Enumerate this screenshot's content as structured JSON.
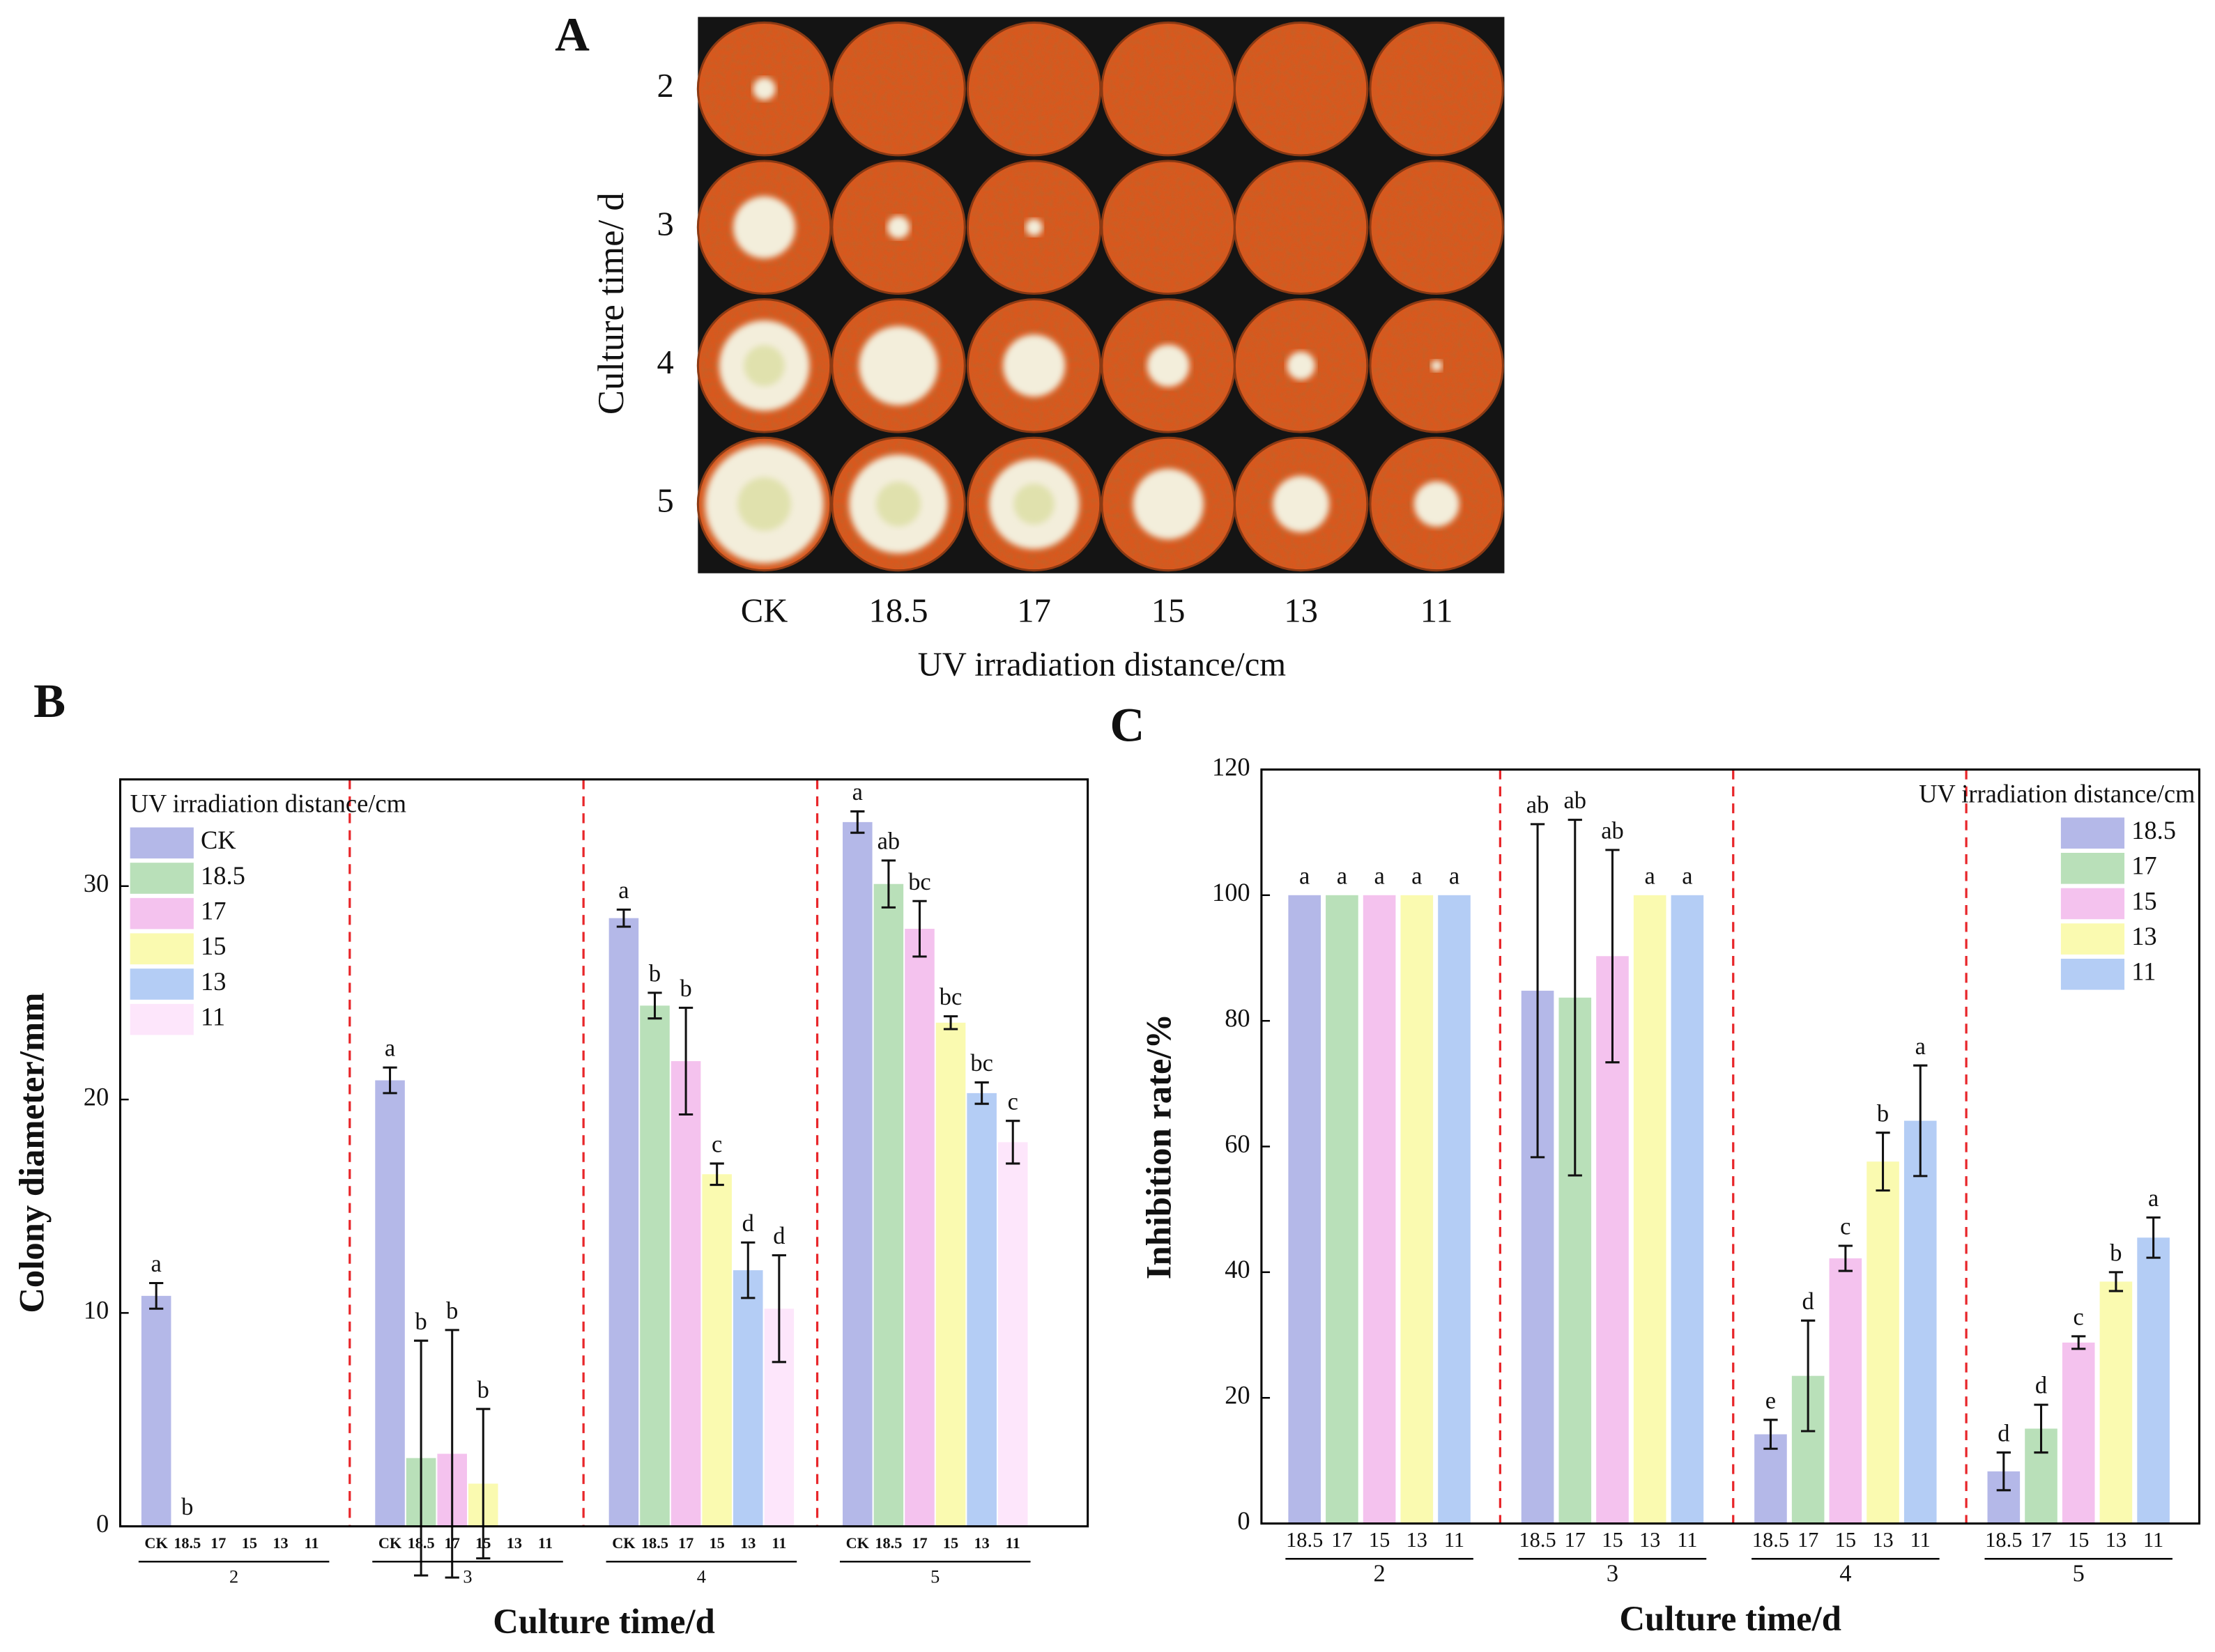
{
  "panel_a": {
    "label": "A",
    "row_labels": [
      "2",
      "3",
      "4",
      "5"
    ],
    "column_labels": [
      "CK",
      "18.5",
      "17",
      "15",
      "13",
      "11"
    ],
    "xlabel": "UV irradiation distance/cm",
    "ylabel": "Culture time/ d"
  },
  "chart_data": [
    {
      "type": "bar",
      "panel": "B",
      "xlabel": "Culture time/d",
      "ylabel": "Colony diameter/mm",
      "categories": [
        "2",
        "3",
        "4",
        "5"
      ],
      "legend_title": "UV irradiation distance/cm",
      "legend": "upper left",
      "ylim": [
        0,
        35
      ],
      "yticks": [
        0,
        10,
        20,
        30
      ],
      "group_dividers": true,
      "divider_color": "#e8262a",
      "series": [
        {
          "name": "CK",
          "color": "#b4b8e8",
          "values": [
            10.8,
            20.9,
            28.5,
            33.0
          ],
          "errors": [
            0.6,
            0.6,
            0.4,
            0.5
          ],
          "significance_labels": [
            "a",
            "a",
            "a",
            "a"
          ]
        },
        {
          "name": "18.5",
          "color": "#b9e0b9",
          "values": [
            0,
            3.2,
            24.4,
            30.1
          ],
          "errors": [
            null,
            5.5,
            0.6,
            1.1
          ],
          "significance_labels": [
            "b",
            "b",
            "b",
            "ab"
          ]
        },
        {
          "name": "17",
          "color": "#f4c2ee",
          "values": [
            0,
            3.4,
            21.8,
            28.0
          ],
          "errors": [
            null,
            5.8,
            2.5,
            1.3
          ],
          "significance_labels": [
            null,
            "b",
            "b",
            "bc"
          ]
        },
        {
          "name": "15",
          "color": "#fafab0",
          "values": [
            0,
            2.0,
            16.5,
            23.6
          ],
          "errors": [
            null,
            3.5,
            0.5,
            0.3
          ],
          "significance_labels": [
            null,
            "b",
            "c",
            "bc"
          ]
        },
        {
          "name": "13",
          "color": "#b4cdf5",
          "values": [
            0,
            0,
            12.0,
            20.3
          ],
          "errors": [
            null,
            null,
            1.3,
            0.5
          ],
          "significance_labels": [
            null,
            null,
            "d",
            "bc"
          ]
        },
        {
          "name": "11",
          "color": "#fde6fb",
          "values": [
            0,
            0,
            10.2,
            18.0
          ],
          "errors": [
            null,
            null,
            2.5,
            1.0
          ],
          "significance_labels": [
            null,
            null,
            "d",
            "c"
          ]
        }
      ]
    },
    {
      "type": "bar",
      "panel": "C",
      "xlabel": "Culture time/d",
      "ylabel": "Inhibition rate/%",
      "categories": [
        "2",
        "3",
        "4",
        "5"
      ],
      "legend_title": "UV irradiation distance/cm",
      "legend": "upper right",
      "ylim": [
        0,
        120
      ],
      "yticks": [
        0,
        20,
        40,
        60,
        80,
        100,
        120
      ],
      "group_dividers": true,
      "divider_color": "#e8262a",
      "series": [
        {
          "name": "18.5",
          "color": "#b4b8e8",
          "values": [
            100,
            84.8,
            14.2,
            8.3
          ],
          "errors": [
            null,
            26.5,
            2.3,
            3.0
          ],
          "significance_labels": [
            "a",
            "ab",
            "e",
            "d"
          ]
        },
        {
          "name": "17",
          "color": "#b9e0b9",
          "values": [
            100,
            83.7,
            23.5,
            15.1
          ],
          "errors": [
            null,
            28.3,
            8.8,
            3.8
          ],
          "significance_labels": [
            "a",
            "ab",
            "d",
            "d"
          ]
        },
        {
          "name": "15",
          "color": "#f4c2ee",
          "values": [
            100,
            90.3,
            42.2,
            28.8
          ],
          "errors": [
            null,
            16.9,
            2.0,
            1.0
          ],
          "significance_labels": [
            "a",
            "ab",
            "c",
            "c"
          ]
        },
        {
          "name": "13",
          "color": "#fafab0",
          "values": [
            100,
            100,
            57.6,
            38.5
          ],
          "errors": [
            null,
            null,
            4.6,
            1.5
          ],
          "significance_labels": [
            "a",
            "a",
            "b",
            "b"
          ]
        },
        {
          "name": "11",
          "color": "#b4cdf5",
          "values": [
            100,
            100,
            64.1,
            45.5
          ],
          "errors": [
            null,
            null,
            8.8,
            3.2
          ],
          "significance_labels": [
            "a",
            "a",
            "a",
            "a"
          ]
        }
      ]
    }
  ]
}
